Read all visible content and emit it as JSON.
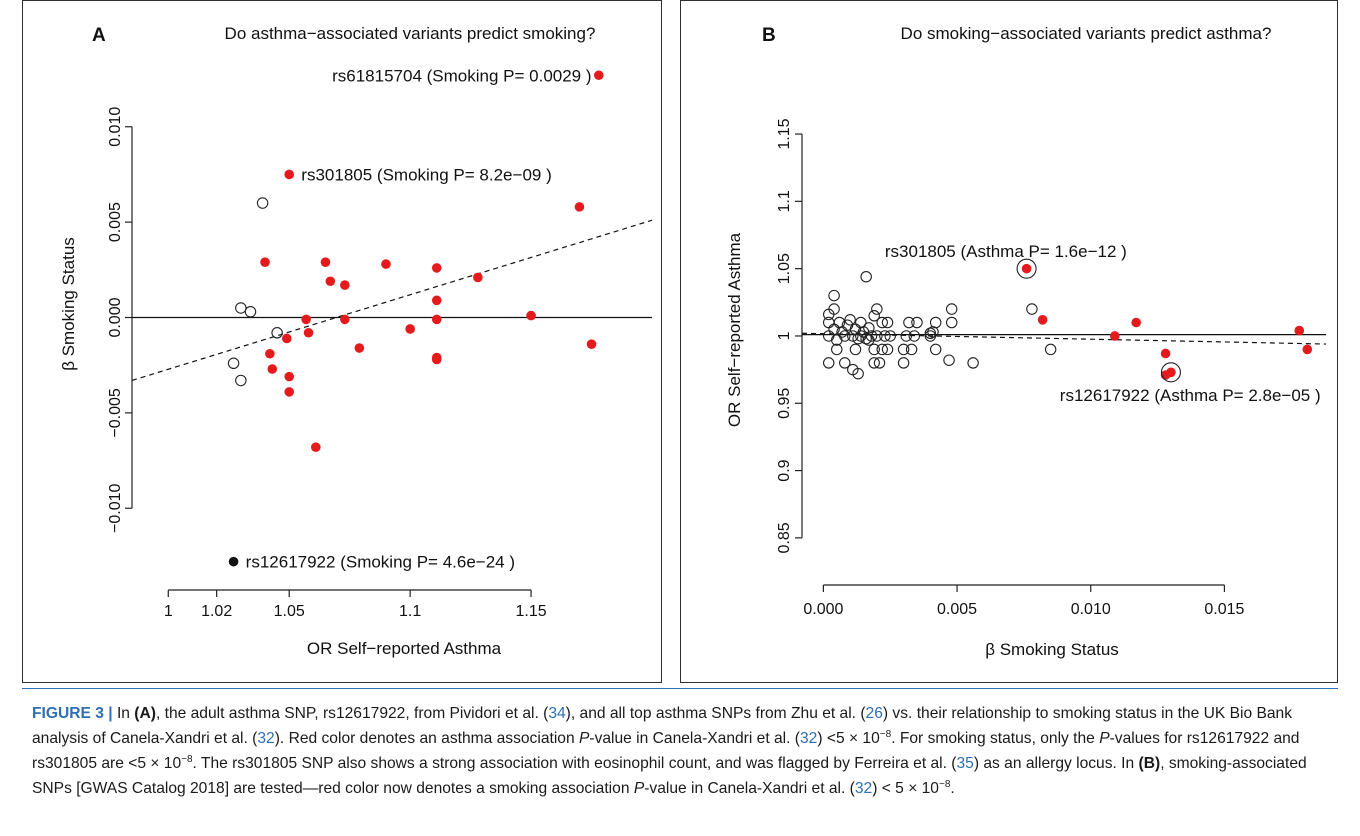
{
  "panels": [
    {
      "letter": "A",
      "title": "Do asthma−associated variants predict smoking?",
      "xlabel": "OR Self−reported Asthma",
      "ylabel": "β Smoking Status"
    },
    {
      "letter": "B",
      "title": "Do smoking−associated variants predict asthma?",
      "xlabel": "β Smoking Status",
      "ylabel": "OR Self−reported Asthma"
    }
  ],
  "chart_data": [
    {
      "type": "scatter",
      "title": "Do asthma−associated variants predict smoking?",
      "xlabel": "OR Self−reported Asthma",
      "ylabel": "β Smoking Status",
      "xlim": [
        0.985,
        1.2
      ],
      "ylim": [
        -0.0135,
        0.0135
      ],
      "x_ticks": [
        1,
        1.02,
        1.05,
        1.1,
        1.15
      ],
      "x_tick_labels": [
        "1",
        "1.02",
        "1.05",
        "1.1",
        "1.15"
      ],
      "y_ticks": [
        -0.01,
        -0.005,
        0,
        0.005,
        0.01
      ],
      "y_tick_labels": [
        "−0.010",
        "−0.005",
        "0.000",
        "0.005",
        "0.010"
      ],
      "hline": 0,
      "fit_line": [
        [
          0.985,
          -0.0033
        ],
        [
          1.2,
          0.0051
        ]
      ],
      "series": [
        {
          "color": "#e41a1c",
          "marker": "filled",
          "points": [
            [
              1.178,
              0.0127
            ],
            [
              1.05,
              0.0075
            ],
            [
              1.17,
              0.0058
            ],
            [
              1.04,
              0.0029
            ],
            [
              1.065,
              0.0029
            ],
            [
              1.09,
              0.0028
            ],
            [
              1.067,
              0.0019
            ],
            [
              1.073,
              0.0017
            ],
            [
              1.128,
              0.0021
            ],
            [
              1.111,
              0.0026
            ],
            [
              1.111,
              0.0009
            ],
            [
              1.057,
              -0.0001
            ],
            [
              1.073,
              -0.0001
            ],
            [
              1.111,
              -0.0001
            ],
            [
              1.15,
              0.0001
            ],
            [
              1.058,
              -0.0008
            ],
            [
              1.1,
              -0.0006
            ],
            [
              1.049,
              -0.0011
            ],
            [
              1.079,
              -0.0016
            ],
            [
              1.175,
              -0.0014
            ],
            [
              1.111,
              -0.0021
            ],
            [
              1.111,
              -0.0022
            ],
            [
              1.042,
              -0.0019
            ],
            [
              1.043,
              -0.0027
            ],
            [
              1.05,
              -0.0031
            ],
            [
              1.05,
              -0.0039
            ],
            [
              1.061,
              -0.0068
            ]
          ]
        },
        {
          "color": "#222222",
          "marker": "open",
          "points": [
            [
              1.039,
              0.006
            ],
            [
              1.03,
              0.0005
            ],
            [
              1.034,
              0.0003
            ],
            [
              1.045,
              -0.0008
            ],
            [
              1.027,
              -0.0024
            ],
            [
              1.03,
              -0.0033
            ]
          ]
        },
        {
          "color": "#111111",
          "marker": "filled",
          "points": [
            [
              1.027,
              -0.0128
            ]
          ]
        }
      ],
      "annotations": [
        {
          "text": "rs61815704 (Smoking P= 0.0029 )",
          "x": 1.175,
          "y": 0.0127,
          "anchor": "end"
        },
        {
          "text": "rs301805 (Smoking P= 8.2e−09 )",
          "x": 1.055,
          "y": 0.0075,
          "anchor": "start"
        },
        {
          "text": "rs12617922 (Smoking P= 4.6e−24 )",
          "x": 1.032,
          "y": -0.0128,
          "anchor": "start"
        }
      ]
    },
    {
      "type": "scatter",
      "title": "Do smoking−associated variants predict asthma?",
      "xlabel": "β Smoking Status",
      "ylabel": "OR Self−reported Asthma",
      "xlim": [
        -0.0008,
        0.0188
      ],
      "ylim": [
        0.815,
        1.205
      ],
      "x_ticks": [
        0,
        0.005,
        0.01,
        0.015
      ],
      "x_tick_labels": [
        "0.000",
        "0.005",
        "0.010",
        "0.015"
      ],
      "y_ticks": [
        0.85,
        0.9,
        0.95,
        1,
        1.05,
        1.1,
        1.15
      ],
      "y_tick_labels": [
        "0.85",
        "0.9",
        "0.95",
        "1",
        "1.05",
        "1.1",
        "1.15"
      ],
      "hline": 1.001,
      "fit_line": [
        [
          -0.0008,
          1.002
        ],
        [
          0.0188,
          0.994
        ]
      ],
      "series": [
        {
          "color": "#e41a1c",
          "marker": "filled",
          "points": [
            [
              0.0076,
              1.05
            ],
            [
              0.0082,
              1.012
            ],
            [
              0.0117,
              1.01
            ],
            [
              0.0109,
              1.0
            ],
            [
              0.0178,
              1.004
            ],
            [
              0.0181,
              0.99
            ],
            [
              0.0128,
              0.987
            ],
            [
              0.0128,
              0.971
            ],
            [
              0.013,
              0.973
            ]
          ]
        },
        {
          "color": "#222222",
          "marker": "open",
          "points": [
            [
              0.0002,
              0.98
            ],
            [
              0.0002,
              1.0
            ],
            [
              0.0002,
              1.01
            ],
            [
              0.0002,
              1.016
            ],
            [
              0.0004,
              1.03
            ],
            [
              0.0004,
              1.02
            ],
            [
              0.0004,
              1.005
            ],
            [
              0.0005,
              0.997
            ],
            [
              0.0005,
              0.99
            ],
            [
              0.0006,
              1.01
            ],
            [
              0.0007,
              1.003
            ],
            [
              0.0008,
              1.0
            ],
            [
              0.0008,
              0.98
            ],
            [
              0.0009,
              1.008
            ],
            [
              0.001,
              1.012
            ],
            [
              0.0011,
              1.0
            ],
            [
              0.0011,
              0.975
            ],
            [
              0.0012,
              0.99
            ],
            [
              0.0012,
              1.005
            ],
            [
              0.0013,
              0.998
            ],
            [
              0.0013,
              0.972
            ],
            [
              0.0014,
              1.0
            ],
            [
              0.0014,
              1.01
            ],
            [
              0.0015,
              1.003
            ],
            [
              0.0016,
              1.044
            ],
            [
              0.0016,
              0.998
            ],
            [
              0.0017,
              0.997
            ],
            [
              0.0017,
              1.006
            ],
            [
              0.0018,
              1.0
            ],
            [
              0.0019,
              1.015
            ],
            [
              0.0019,
              0.99
            ],
            [
              0.0019,
              0.98
            ],
            [
              0.002,
              1.02
            ],
            [
              0.002,
              1.0
            ],
            [
              0.0021,
              0.98
            ],
            [
              0.0022,
              1.01
            ],
            [
              0.0022,
              0.99
            ],
            [
              0.0023,
              1.0
            ],
            [
              0.0024,
              1.01
            ],
            [
              0.0024,
              0.99
            ],
            [
              0.0025,
              1.0
            ],
            [
              0.003,
              0.98
            ],
            [
              0.003,
              0.99
            ],
            [
              0.0031,
              1.0
            ],
            [
              0.0032,
              1.01
            ],
            [
              0.0033,
              0.99
            ],
            [
              0.0034,
              1.0
            ],
            [
              0.0035,
              1.01
            ],
            [
              0.004,
              1.0
            ],
            [
              0.004,
              1.002
            ],
            [
              0.0041,
              1.003
            ],
            [
              0.0042,
              0.99
            ],
            [
              0.0042,
              1.01
            ],
            [
              0.0047,
              0.982
            ],
            [
              0.0048,
              1.01
            ],
            [
              0.0048,
              1.02
            ],
            [
              0.0056,
              0.98
            ],
            [
              0.0078,
              1.02
            ],
            [
              0.0085,
              0.99
            ]
          ]
        }
      ],
      "circled_points": [
        [
          0.0076,
          1.05
        ],
        [
          0.013,
          0.973
        ]
      ],
      "annotations": [
        {
          "text": "rs301805 (Asthma P= 1.6e−12 )",
          "x": 0.0023,
          "y": 1.063,
          "anchor": "start"
        },
        {
          "text": "rs12617922 (Asthma P= 2.8e−05 )",
          "x": 0.0186,
          "y": 0.956,
          "anchor": "end"
        }
      ]
    }
  ],
  "caption": {
    "label": "FIGURE 3 |",
    "parts": [
      {
        "t": " In ",
        "s": ""
      },
      {
        "t": "(A)",
        "s": "b"
      },
      {
        "t": ", the adult asthma SNP, rs12617922, from Pividori et al. (",
        "s": ""
      },
      {
        "t": "34",
        "s": "ref"
      },
      {
        "t": "), and all top asthma SNPs from Zhu et al. (",
        "s": ""
      },
      {
        "t": "26",
        "s": "ref"
      },
      {
        "t": ") vs. their relationship to smoking status in the UK Bio Bank analysis of Canela-Xandri et al. (",
        "s": ""
      },
      {
        "t": "32",
        "s": "ref"
      },
      {
        "t": "). Red color denotes an asthma association ",
        "s": ""
      },
      {
        "t": "P",
        "s": "i"
      },
      {
        "t": "-value in Canela-Xandri et al. (",
        "s": ""
      },
      {
        "t": "32",
        "s": "ref"
      },
      {
        "t": ") <5 × 10",
        "s": ""
      },
      {
        "t": "−8",
        "s": "sup"
      },
      {
        "t": ". For smoking status, only the ",
        "s": ""
      },
      {
        "t": "P",
        "s": "i"
      },
      {
        "t": "-values for rs12617922 and rs301805 are <5 × 10",
        "s": ""
      },
      {
        "t": "−8",
        "s": "sup"
      },
      {
        "t": ". The rs301805 SNP also shows a strong association with eosinophil count, and was flagged by Ferreira et al. (",
        "s": ""
      },
      {
        "t": "35",
        "s": "ref"
      },
      {
        "t": ") as an allergy locus. In ",
        "s": ""
      },
      {
        "t": "(B)",
        "s": "b"
      },
      {
        "t": ", smoking-associated SNPs [GWAS Catalog 2018] are tested—red color now denotes a smoking association ",
        "s": ""
      },
      {
        "t": "P",
        "s": "i"
      },
      {
        "t": "-value in Canela-Xandri et al. (",
        "s": ""
      },
      {
        "t": "32",
        "s": "ref"
      },
      {
        "t": ") < 5 × 10",
        "s": ""
      },
      {
        "t": "−8",
        "s": "sup"
      },
      {
        "t": ".",
        "s": ""
      }
    ]
  }
}
